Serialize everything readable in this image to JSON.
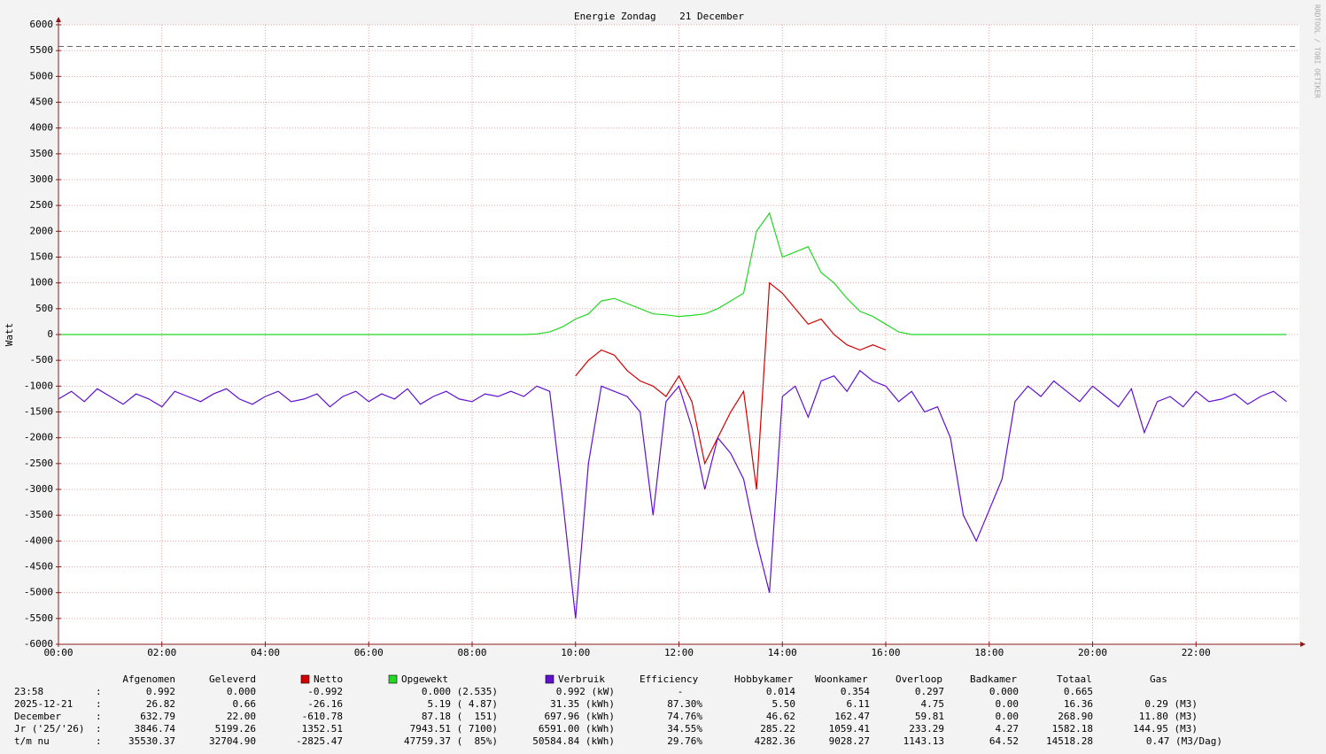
{
  "chart_data": {
    "type": "line",
    "title": "Energie Zondag    21 December",
    "y_label": "Watt",
    "watermark": "RRDTOOL / TOBI OETIKER",
    "xlim": [
      0,
      24
    ],
    "ylim": [
      -6000,
      6000
    ],
    "grid": true,
    "dashed_line": 5580,
    "xticks": [
      {
        "value": 0,
        "label": "00:00"
      },
      {
        "value": 2,
        "label": "02:00"
      },
      {
        "value": 4,
        "label": "04:00"
      },
      {
        "value": 6,
        "label": "06:00"
      },
      {
        "value": 8,
        "label": "08:00"
      },
      {
        "value": 10,
        "label": "10:00"
      },
      {
        "value": 12,
        "label": "12:00"
      },
      {
        "value": 14,
        "label": "14:00"
      },
      {
        "value": 16,
        "label": "16:00"
      },
      {
        "value": 18,
        "label": "18:00"
      },
      {
        "value": 20,
        "label": "20:00"
      },
      {
        "value": 22,
        "label": "22:00"
      }
    ],
    "yticks": [
      -6000,
      -5500,
      -5000,
      -4500,
      -4000,
      -3500,
      -3000,
      -2500,
      -2000,
      -1500,
      -1000,
      -500,
      0,
      500,
      1000,
      1500,
      2000,
      2500,
      3000,
      3500,
      4000,
      4500,
      5000,
      5500,
      6000
    ],
    "x": [
      0,
      0.25,
      0.5,
      0.75,
      1,
      1.25,
      1.5,
      1.75,
      2,
      2.25,
      2.5,
      2.75,
      3,
      3.25,
      3.5,
      3.75,
      4,
      4.25,
      4.5,
      4.75,
      5,
      5.25,
      5.5,
      5.75,
      6,
      6.25,
      6.5,
      6.75,
      7,
      7.25,
      7.5,
      7.75,
      8,
      8.25,
      8.5,
      8.75,
      9,
      9.25,
      9.5,
      9.75,
      10,
      10.25,
      10.5,
      10.75,
      11,
      11.25,
      11.5,
      11.75,
      12,
      12.25,
      12.5,
      12.75,
      13,
      13.25,
      13.5,
      13.75,
      14,
      14.25,
      14.5,
      14.75,
      15,
      15.25,
      15.5,
      15.75,
      16,
      16.25,
      16.5,
      16.75,
      17,
      17.25,
      17.5,
      17.75,
      18,
      18.25,
      18.5,
      18.75,
      19,
      19.25,
      19.5,
      19.75,
      20,
      20.25,
      20.5,
      20.75,
      21,
      21.25,
      21.5,
      21.75,
      22,
      22.25,
      22.5,
      22.75,
      23,
      23.25,
      23.5,
      23.75
    ],
    "series": [
      {
        "name": "Netto",
        "color": "#d40000",
        "values": [
          null,
          null,
          null,
          null,
          null,
          null,
          null,
          null,
          null,
          null,
          null,
          null,
          null,
          null,
          null,
          null,
          null,
          null,
          null,
          null,
          null,
          null,
          null,
          null,
          null,
          null,
          null,
          null,
          null,
          null,
          null,
          null,
          null,
          null,
          null,
          null,
          null,
          null,
          null,
          null,
          -800,
          -500,
          -300,
          -400,
          -700,
          -900,
          -1000,
          -1200,
          -800,
          -1300,
          -2500,
          -2000,
          -1500,
          -1100,
          -3000,
          1000,
          800,
          500,
          200,
          300,
          0,
          -200,
          -300,
          -200,
          -300,
          null,
          null,
          null,
          null,
          null,
          null,
          null,
          null,
          null,
          null,
          null,
          null,
          null,
          null,
          null,
          null,
          null,
          null,
          null,
          null,
          null,
          null,
          null,
          null,
          null,
          null,
          null,
          null,
          null,
          null,
          null
        ]
      },
      {
        "name": "Opgewekt",
        "color": "#22d822",
        "values": [
          0,
          0,
          0,
          0,
          0,
          0,
          0,
          0,
          0,
          0,
          0,
          0,
          0,
          0,
          0,
          0,
          0,
          0,
          0,
          0,
          0,
          0,
          0,
          0,
          0,
          0,
          0,
          0,
          0,
          0,
          0,
          0,
          0,
          0,
          0,
          0,
          0,
          10,
          50,
          150,
          300,
          400,
          650,
          700,
          600,
          500,
          400,
          380,
          350,
          370,
          400,
          500,
          650,
          800,
          2000,
          2350,
          1500,
          1600,
          1700,
          1200,
          1000,
          700,
          450,
          350,
          200,
          50,
          0,
          0,
          0,
          0,
          0,
          0,
          0,
          0,
          0,
          0,
          0,
          0,
          0,
          0,
          0,
          0,
          0,
          0,
          0,
          0,
          0,
          0,
          0,
          0,
          0,
          0,
          0,
          0,
          0,
          0
        ]
      },
      {
        "name": "Verbruik",
        "color": "#6010d0",
        "values": [
          -1250,
          -1100,
          -1300,
          -1050,
          -1200,
          -1350,
          -1150,
          -1250,
          -1400,
          -1100,
          -1200,
          -1300,
          -1150,
          -1050,
          -1250,
          -1350,
          -1200,
          -1100,
          -1300,
          -1250,
          -1150,
          -1400,
          -1200,
          -1100,
          -1300,
          -1150,
          -1250,
          -1050,
          -1350,
          -1200,
          -1100,
          -1250,
          -1300,
          -1150,
          -1200,
          -1100,
          -1200,
          -1000,
          -1100,
          -3200,
          -5500,
          -2500,
          -1000,
          -1100,
          -1200,
          -1500,
          -3500,
          -1300,
          -1000,
          -1800,
          -3000,
          -2000,
          -2300,
          -2800,
          -4000,
          -5000,
          -1200,
          -1000,
          -1600,
          -900,
          -800,
          -1100,
          -700,
          -900,
          -1000,
          -1300,
          -1100,
          -1500,
          -1400,
          -2000,
          -3500,
          -4000,
          -3400,
          -2800,
          -1300,
          -1000,
          -1200,
          -900,
          -1100,
          -1300,
          -1000,
          -1200,
          -1400,
          -1050,
          -1900,
          -1300,
          -1200,
          -1400,
          -1100,
          -1300,
          -1250,
          -1150,
          -1350,
          -1200,
          -1100,
          -1300
        ]
      }
    ]
  },
  "table": {
    "separator": ":",
    "columns_before": [
      "Afgenomen",
      "Geleverd"
    ],
    "columns_after": [
      "Efficiency",
      "Hobbykamer",
      "Woonkamer",
      "Overloop",
      "Badkamer",
      "Totaal",
      "Gas"
    ],
    "rows": [
      {
        "label": "23:58",
        "cells": [
          "0.992",
          "0.000",
          "-0.992",
          "0.000 (2.535)",
          "0.992 (kW)",
          "-",
          "0.014",
          "0.354",
          "0.297",
          "0.000",
          "0.665"
        ]
      },
      {
        "label": "2025-12-21",
        "cells": [
          "26.82",
          "0.66",
          "-26.16",
          "5.19 ( 4.87)",
          "31.35 (kWh)",
          "87.30%",
          "5.50",
          "6.11",
          "4.75",
          "0.00",
          "16.36",
          "0.29 (M3)"
        ]
      },
      {
        "label": "December",
        "cells": [
          "632.79",
          "22.00",
          "-610.78",
          "87.18 (  151)",
          "697.96 (kWh)",
          "74.76%",
          "46.62",
          "162.47",
          "59.81",
          "0.00",
          "268.90",
          "11.80 (M3)"
        ]
      },
      {
        "label": "Jr ('25/'26)",
        "cells": [
          "3846.74",
          "5199.26",
          "1352.51",
          "7943.51 ( 7100)",
          "6591.00 (kWh)",
          "34.55%",
          "285.22",
          "1059.41",
          "233.29",
          "4.27",
          "1582.18",
          "144.95 (M3)"
        ]
      },
      {
        "label": "t/m nu",
        "cells": [
          "35530.37",
          "32704.90",
          "-2825.47",
          "47759.37 (  85%)",
          "50584.84 (kWh)",
          "29.76%",
          "4282.36",
          "9028.27",
          "1143.13",
          "64.52",
          "14518.28",
          "0.47 (M3/Dag)"
        ]
      }
    ]
  }
}
